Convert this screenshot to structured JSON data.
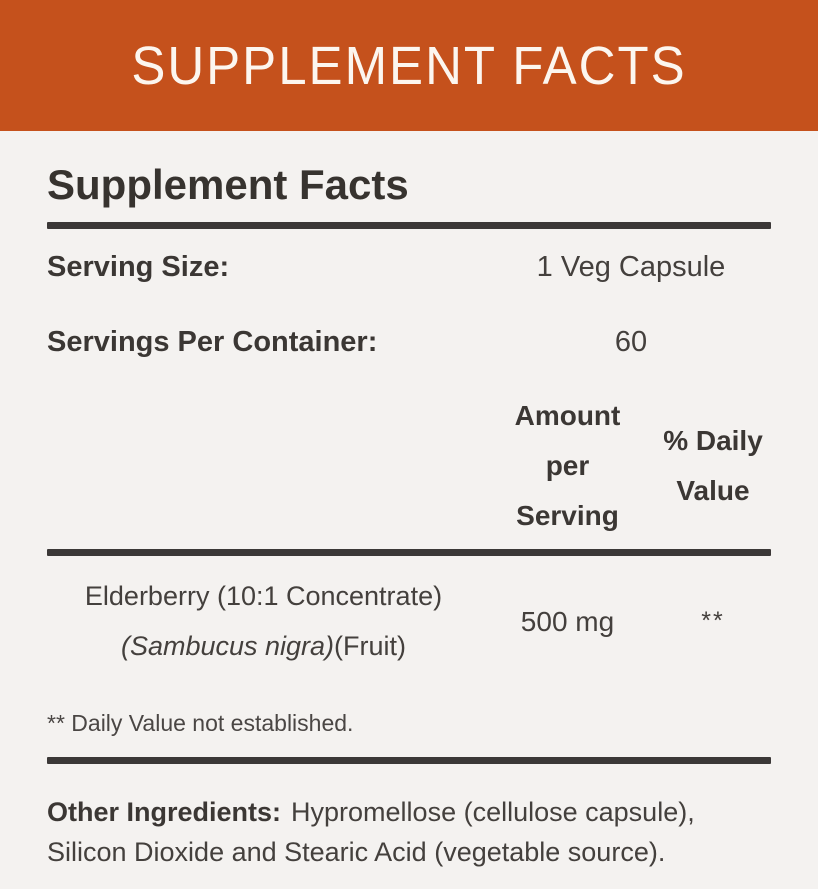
{
  "banner": {
    "title": "SUPPLEMENT FACTS",
    "bg_color": "#C5511C",
    "text_color": "#FCF6EF"
  },
  "panel": {
    "title": "Supplement Facts",
    "serving_rows": [
      {
        "label": "Serving Size:",
        "value": "1 Veg Capsule"
      },
      {
        "label": "Servings Per Container:",
        "value": "60"
      }
    ],
    "columns": {
      "amount": "Amount per Serving",
      "daily_value": "% Daily Value"
    },
    "ingredient": {
      "name_line1": "Elderberry (10:1 Concentrate)",
      "name_line2_species": "(Sambucus nigra)",
      "name_line2_suffix": "(Fruit)",
      "amount": "500 mg",
      "daily_value": "**"
    },
    "footnote": "** Daily Value not established.",
    "other": {
      "label": "Other Ingredients:",
      "text": "Hypromellose (cellulose capsule), Silicon Dioxide and Stearic Acid (vegetable source)."
    }
  },
  "colors": {
    "accent_orange": "#C5511C",
    "panel_bg": "#F4F2F0",
    "rule": "#3B3837",
    "text": "#44403D"
  }
}
